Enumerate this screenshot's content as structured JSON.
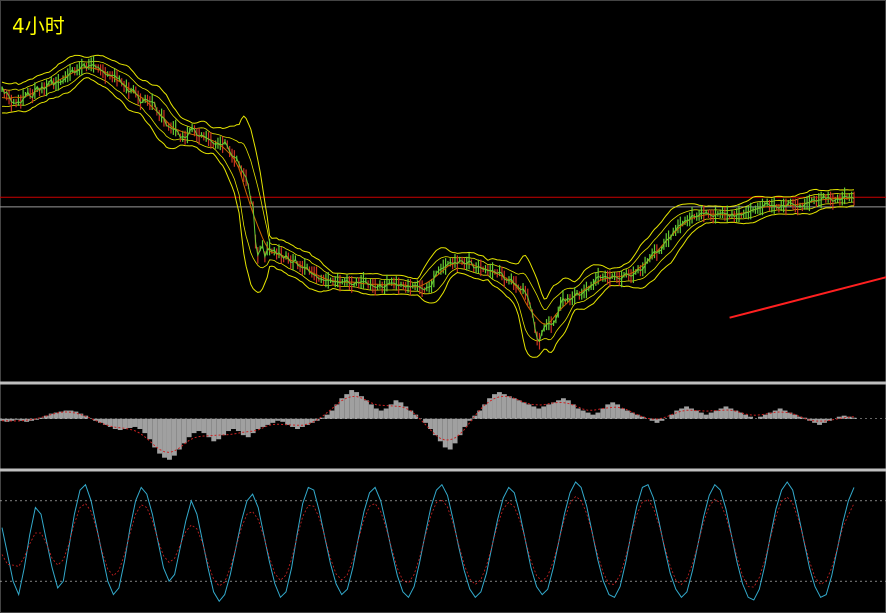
{
  "timeframe_label": "4小时",
  "colors": {
    "background": "#000000",
    "price_line": "#66cc33",
    "band": "#e6e600",
    "ma": "#cc6600",
    "resistance": "#cc0000",
    "reference": "#999999",
    "trendline": "#ff2020",
    "panel_divider": "#bfbfbf",
    "histogram": "#a0a0a0",
    "signal": "#cc2222",
    "oscillator": "#33aacc",
    "level_line": "#cccccc"
  },
  "chart_data": [
    {
      "type": "line",
      "panel": "price",
      "title": "",
      "series": [
        {
          "values": [
            150,
            147,
            146,
            144,
            140,
            141,
            140,
            142,
            141,
            144,
            146,
            148,
            147,
            145,
            149,
            150,
            148,
            151,
            150,
            151,
            154,
            156,
            154,
            154,
            155,
            155,
            157,
            159,
            160,
            162,
            164,
            163,
            164,
            165,
            166,
            167,
            166,
            168,
            168,
            168,
            166,
            165,
            164,
            163,
            160,
            161,
            160,
            159,
            160,
            158,
            158,
            155,
            152,
            152,
            149,
            149,
            150,
            148,
            144,
            141,
            142,
            143,
            142,
            140,
            141,
            139,
            134,
            131,
            131,
            129,
            125,
            123,
            122,
            122,
            122,
            119,
            115,
            116,
            115,
            117,
            120,
            122,
            120,
            117,
            116,
            117,
            116,
            116,
            114,
            113,
            110,
            110,
            111,
            111,
            110,
            112,
            110,
            105,
            102,
            100,
            100,
            95,
            91,
            88,
            86,
            80,
            70,
            65,
            40,
            30,
            35,
            38,
            29,
            35,
            36,
            33,
            33,
            31,
            33,
            30,
            27,
            30,
            28,
            25,
            25,
            28,
            23,
            22,
            21,
            22,
            22,
            19,
            18,
            17,
            16,
            13,
            13,
            12,
            12,
            12,
            12,
            11,
            11,
            12,
            10,
            11,
            11,
            12,
            10,
            9,
            9,
            11,
            10,
            11,
            12,
            12,
            9,
            9,
            8,
            7,
            7,
            9,
            7,
            7,
            10,
            11,
            11,
            10,
            10,
            8,
            9,
            8,
            7,
            8,
            7,
            8,
            8,
            8,
            7,
            6,
            5,
            7,
            7,
            8,
            13,
            17,
            19,
            20,
            22,
            22,
            24,
            25,
            24,
            26,
            24,
            27,
            26,
            24,
            24,
            26,
            25,
            21,
            21,
            22,
            21,
            20,
            20,
            19,
            19,
            19,
            18,
            17,
            19,
            17,
            13,
            12,
            12,
            13,
            10,
            9,
            7,
            5,
            6,
            3,
            0,
            -6,
            -12,
            -22,
            -30,
            -32,
            -26,
            -22,
            -20,
            -19,
            -20,
            -19,
            -16,
            -11,
            -5,
            -1,
            -3,
            -1,
            -2,
            -1,
            1,
            3,
            1,
            2,
            4,
            5,
            6,
            8,
            9,
            13,
            15,
            14,
            14,
            15,
            14,
            13,
            15,
            15,
            14,
            13,
            13,
            16,
            17,
            16,
            15,
            16,
            18,
            20,
            19,
            20,
            23,
            26,
            28,
            31,
            33,
            32,
            33,
            34,
            38,
            41,
            42,
            43,
            47,
            48,
            51,
            52,
            53,
            55,
            55,
            56,
            59,
            58,
            58,
            59,
            61,
            60,
            61,
            60,
            59,
            58,
            59,
            60,
            60,
            61,
            60,
            60,
            58,
            60,
            58,
            59,
            60,
            59,
            60,
            61,
            61,
            62,
            63,
            63,
            64,
            64,
            65,
            67,
            68,
            66,
            66,
            66,
            65,
            64,
            66,
            66,
            65,
            68,
            68,
            67,
            66,
            65,
            66,
            65,
            67,
            68,
            68,
            70,
            70,
            69,
            70,
            70,
            73,
            71,
            72,
            71,
            69,
            70,
            71,
            70,
            71,
            73,
            72,
            72,
            72,
            71
          ]
        },
        {
          "values": [
            152,
            147,
            148,
            145,
            141,
            140,
            140,
            141,
            140,
            143,
            145,
            148,
            145,
            144,
            149,
            152,
            149,
            152,
            150,
            152,
            155,
            157,
            153,
            155,
            155,
            155,
            156,
            158,
            159,
            162,
            164,
            162,
            163,
            164,
            167,
            168,
            165,
            167,
            167,
            168,
            166,
            166,
            164,
            163,
            161,
            160,
            160,
            160,
            160,
            158,
            158,
            154,
            153,
            151,
            148,
            149,
            150,
            147,
            145,
            140,
            141,
            143,
            142,
            141,
            141,
            140,
            134,
            132,
            130,
            129,
            124,
            123,
            122,
            121,
            121,
            119,
            115,
            116,
            115,
            116,
            120,
            122,
            121,
            117,
            116,
            117,
            116,
            115,
            114,
            113,
            111,
            110,
            111,
            110,
            110,
            112,
            109,
            105,
            102,
            101,
            100,
            96,
            92,
            89,
            86,
            80,
            70,
            65,
            40,
            30,
            34,
            37,
            29,
            34,
            35,
            33,
            34,
            31,
            32,
            30,
            28,
            30,
            28,
            25,
            25,
            27,
            23,
            22,
            21,
            21,
            21,
            18,
            17,
            16,
            15,
            13,
            13,
            12,
            12,
            12,
            12,
            11,
            11,
            11,
            10,
            11,
            11,
            12,
            10,
            9,
            9,
            11,
            10,
            11,
            11,
            11,
            9,
            9,
            8,
            7,
            7,
            9,
            7,
            7,
            9,
            10,
            10,
            10,
            9,
            8,
            9,
            8,
            7,
            8,
            7,
            8,
            8,
            8,
            7,
            6,
            5,
            7,
            7,
            8,
            13,
            17,
            19,
            20,
            21,
            22,
            24,
            25,
            24,
            25,
            24,
            26,
            26,
            24,
            24,
            26,
            25,
            21,
            21,
            22,
            21,
            20,
            20,
            19,
            19,
            19,
            18,
            17,
            18,
            17,
            13,
            12,
            12,
            13,
            10,
            9,
            7,
            5,
            6,
            3,
            0,
            -6,
            -12,
            -22,
            -30,
            -32,
            -26,
            -22,
            -20,
            -19,
            -20,
            -19,
            -16,
            -11,
            -5,
            -1,
            -3,
            -1,
            -2,
            -1,
            1,
            3,
            1,
            2,
            4,
            5,
            6,
            8,
            9,
            13,
            15,
            14,
            14,
            15,
            14,
            13,
            15,
            15,
            14,
            13,
            13,
            16,
            17,
            16,
            15,
            16,
            18,
            20,
            19,
            20,
            23,
            26,
            28,
            31,
            33,
            32,
            33,
            34,
            38,
            41,
            42,
            43,
            47,
            48,
            51,
            52,
            53,
            55,
            55,
            56,
            59,
            58,
            58,
            59,
            61,
            60,
            61,
            60,
            59,
            58,
            59,
            60,
            60,
            61,
            60,
            60,
            58,
            60,
            58,
            59,
            60,
            59,
            60,
            61,
            61,
            62,
            63,
            63,
            64,
            64,
            65,
            67,
            68,
            66,
            66,
            66,
            65,
            64,
            66,
            66,
            65,
            68,
            68,
            67,
            66,
            65,
            66,
            65,
            67,
            68,
            68,
            70,
            70,
            69,
            70,
            70,
            73,
            71,
            72,
            71,
            69,
            70,
            71,
            70,
            71,
            73,
            72,
            72,
            72,
            71
          ]
        }
      ],
      "hlines": [
        72,
        65
      ],
      "ylim": [
        -60,
        200
      ],
      "trendline": {
        "x": [
          310,
          440
        ],
        "y": [
          -15,
          42
        ]
      }
    },
    {
      "type": "bar",
      "panel": "histogram",
      "zero_line": true,
      "values": [
        -2,
        -3,
        -2,
        -1,
        -2,
        -3,
        -2,
        -1,
        1,
        3,
        5,
        6,
        7,
        8,
        8,
        7,
        5,
        3,
        0,
        -2,
        -4,
        -6,
        -8,
        -10,
        -11,
        -10,
        -9,
        -8,
        -10,
        -14,
        -20,
        -28,
        -34,
        -38,
        -40,
        -36,
        -30,
        -24,
        -18,
        -14,
        -12,
        -14,
        -18,
        -22,
        -20,
        -16,
        -12,
        -10,
        -12,
        -16,
        -18,
        -14,
        -10,
        -8,
        -6,
        -4,
        -2,
        -3,
        -6,
        -8,
        -10,
        -8,
        -6,
        -4,
        -2,
        1,
        4,
        8,
        14,
        20,
        24,
        28,
        26,
        22,
        18,
        14,
        10,
        8,
        10,
        14,
        18,
        16,
        12,
        8,
        4,
        0,
        -4,
        -10,
        -16,
        -22,
        -28,
        -30,
        -24,
        -16,
        -8,
        -2,
        3,
        8,
        14,
        20,
        24,
        26,
        24,
        22,
        20,
        18,
        16,
        14,
        12,
        10,
        12,
        14,
        16,
        18,
        20,
        18,
        14,
        10,
        8,
        6,
        4,
        6,
        10,
        14,
        16,
        14,
        10,
        8,
        6,
        4,
        2,
        0,
        -2,
        -4,
        -2,
        0,
        4,
        8,
        10,
        12,
        10,
        8,
        6,
        4,
        6,
        8,
        10,
        12,
        10,
        8,
        6,
        4,
        2,
        0,
        2,
        4,
        6,
        8,
        10,
        8,
        6,
        4,
        2,
        1,
        -2,
        -4,
        -6,
        -4,
        -2,
        0,
        2,
        3,
        2,
        1
      ],
      "ylim": [
        -50,
        30
      ]
    },
    {
      "type": "line",
      "panel": "oscillator",
      "values": [
        60,
        40,
        20,
        10,
        30,
        55,
        75,
        70,
        50,
        30,
        15,
        20,
        45,
        70,
        88,
        92,
        80,
        60,
        40,
        20,
        10,
        15,
        35,
        60,
        80,
        90,
        85,
        70,
        50,
        30,
        20,
        25,
        45,
        65,
        80,
        70,
        50,
        30,
        12,
        5,
        10,
        25,
        45,
        65,
        80,
        85,
        75,
        55,
        35,
        18,
        8,
        12,
        30,
        55,
        78,
        90,
        88,
        72,
        52,
        33,
        18,
        10,
        14,
        30,
        52,
        72,
        86,
        90,
        80,
        62,
        42,
        24,
        12,
        8,
        16,
        34,
        55,
        75,
        88,
        92,
        84,
        66,
        46,
        28,
        14,
        8,
        12,
        26,
        46,
        66,
        82,
        90,
        86,
        70,
        50,
        30,
        16,
        10,
        14,
        30,
        50,
        70,
        86,
        94,
        90,
        76,
        56,
        36,
        20,
        10,
        8,
        16,
        34,
        56,
        76,
        90,
        92,
        82,
        64,
        44,
        26,
        14,
        8,
        12,
        28,
        48,
        68,
        84,
        92,
        88,
        74,
        54,
        34,
        18,
        8,
        6,
        14,
        32,
        54,
        74,
        88,
        94,
        88,
        70,
        50,
        30,
        16,
        8,
        10,
        24,
        44,
        64,
        80,
        90
      ],
      "levels": [
        80,
        20
      ],
      "ylim": [
        0,
        100
      ]
    }
  ]
}
